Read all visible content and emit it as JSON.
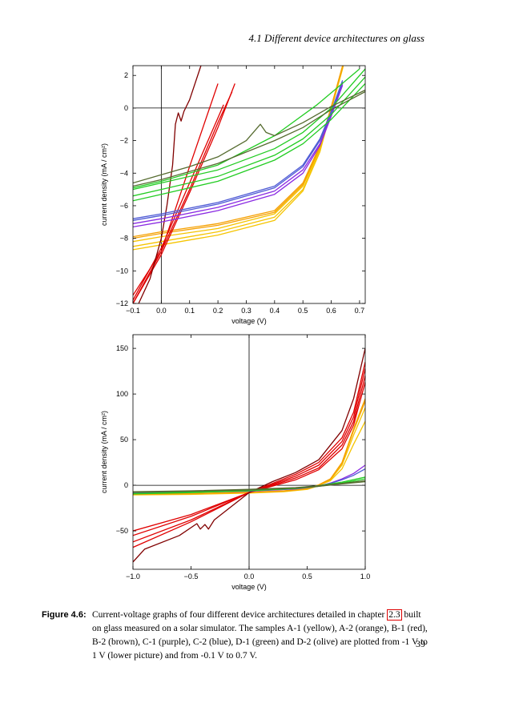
{
  "header": {
    "running_title": "4.1  Different device architectures on glass"
  },
  "page_number": "39",
  "caption": {
    "label": "Figure 4.6:",
    "text_before_ref": "Current-voltage graphs of four different device architectures detailed in chapter ",
    "ref": "2.3",
    "text_after_ref": " built on glass measured on a solar simulator. The samples A-1 (yellow), A-2 (orange), B-1 (red), B-2 (brown), C-1 (purple), C-2 (blue), D-1 (green) and D-2 (olive) are plotted from -1 V to 1 V (lower picture) and from -0.1 V to 0.7 V."
  },
  "colors": {
    "A-1": "#f5c400",
    "A-2": "#f5a000",
    "B-1": "#e00000",
    "B-2": "#800000",
    "C-1": "#8a2be2",
    "C-2": "#4f5bd5",
    "D-1": "#22cc22",
    "D-2": "#556b2f"
  },
  "chart_data": [
    {
      "type": "line",
      "title": "",
      "xlabel": "voltage (V)",
      "ylabel": "current density (mA / cm²)",
      "xlim": [
        -0.1,
        0.72
      ],
      "ylim": [
        -12,
        2.6
      ],
      "xticks": [
        -0.1,
        0.0,
        0.1,
        0.2,
        0.3,
        0.4,
        0.5,
        0.6,
        0.7
      ],
      "xtick_labels": [
        "−0.1",
        "0.0",
        "0.1",
        "0.2",
        "0.3",
        "0.4",
        "0.5",
        "0.6",
        "0.7"
      ],
      "yticks": [
        -12,
        -10,
        -8,
        -6,
        -4,
        -2,
        0,
        2
      ],
      "ytick_labels": [
        "−12",
        "−10",
        "−8",
        "−6",
        "−4",
        "−2",
        "0",
        "2"
      ],
      "series": [
        {
          "name": "A-1 #1",
          "sample": "A-1",
          "x": [
            -0.1,
            0.0,
            0.2,
            0.4,
            0.5,
            0.56,
            0.6,
            0.64,
            0.66
          ],
          "y": [
            -8.2,
            -7.9,
            -7.4,
            -6.5,
            -4.8,
            -2.5,
            0,
            2.5,
            4
          ]
        },
        {
          "name": "A-1 #2",
          "sample": "A-1",
          "x": [
            -0.1,
            0.0,
            0.2,
            0.4,
            0.5,
            0.56,
            0.6,
            0.64,
            0.66
          ],
          "y": [
            -8.5,
            -8.2,
            -7.6,
            -6.7,
            -5.0,
            -2.6,
            0,
            2.5,
            4
          ]
        },
        {
          "name": "A-1 #3",
          "sample": "A-1",
          "x": [
            -0.1,
            0.0,
            0.2,
            0.4,
            0.5,
            0.56,
            0.6,
            0.64,
            0.66
          ],
          "y": [
            -8.7,
            -8.4,
            -7.8,
            -6.9,
            -5.1,
            -2.7,
            -0.1,
            2.4,
            4
          ]
        },
        {
          "name": "A-2 #1",
          "sample": "A-2",
          "x": [
            -0.1,
            0.0,
            0.2,
            0.4,
            0.5,
            0.56,
            0.6,
            0.64,
            0.66
          ],
          "y": [
            -7.9,
            -7.6,
            -7.1,
            -6.3,
            -4.6,
            -2.3,
            0.1,
            2.6,
            4
          ]
        },
        {
          "name": "A-2 #2",
          "sample": "A-2",
          "x": [
            -0.1,
            0.0,
            0.2,
            0.4,
            0.5,
            0.56,
            0.6,
            0.64,
            0.66
          ],
          "y": [
            -8.0,
            -7.7,
            -7.2,
            -6.4,
            -4.7,
            -2.4,
            0,
            2.5,
            4
          ]
        },
        {
          "name": "B-1 #1",
          "sample": "B-1",
          "x": [
            -0.1,
            0.0,
            0.1,
            0.2
          ],
          "y": [
            -12,
            -8.8,
            -3.6,
            1.5
          ]
        },
        {
          "name": "B-1 #2",
          "sample": "B-1",
          "x": [
            -0.1,
            0.0,
            0.1,
            0.2,
            0.22
          ],
          "y": [
            -11.8,
            -8.6,
            -4.6,
            -0.6,
            0.2
          ]
        },
        {
          "name": "B-1 #3",
          "sample": "B-1",
          "x": [
            -0.1,
            0.0,
            0.1,
            0.2,
            0.25
          ],
          "y": [
            -11.5,
            -8.8,
            -5.0,
            -0.9,
            1.0
          ]
        },
        {
          "name": "B-1 #4",
          "sample": "B-1",
          "x": [
            -0.1,
            0.0,
            0.1,
            0.2,
            0.26
          ],
          "y": [
            -12,
            -9.0,
            -5.2,
            -1.2,
            1.5
          ]
        },
        {
          "name": "B-2 #1",
          "sample": "B-2",
          "x": [
            -0.08,
            -0.04,
            0.0,
            0.02,
            0.04,
            0.05,
            0.06,
            0.07,
            0.08,
            0.1,
            0.14
          ],
          "y": [
            -12,
            -10.5,
            -8.0,
            -6.0,
            -3.5,
            -1.0,
            -0.3,
            -0.8,
            -0.2,
            0.5,
            2.6
          ]
        },
        {
          "name": "C-1 #1",
          "sample": "C-1",
          "x": [
            -0.1,
            0.0,
            0.2,
            0.4,
            0.5,
            0.56,
            0.6,
            0.64
          ],
          "y": [
            -7.1,
            -6.8,
            -6.1,
            -5.1,
            -3.8,
            -2.2,
            -0.4,
            1.5
          ]
        },
        {
          "name": "C-1 #2",
          "sample": "C-1",
          "x": [
            -0.1,
            0.0,
            0.2,
            0.4,
            0.5,
            0.56,
            0.6,
            0.64
          ],
          "y": [
            -7.3,
            -7.0,
            -6.3,
            -5.3,
            -4.0,
            -2.3,
            -0.5,
            1.4
          ]
        },
        {
          "name": "C-2 #1",
          "sample": "C-2",
          "x": [
            -0.1,
            0.0,
            0.2,
            0.4,
            0.5,
            0.56,
            0.6,
            0.64
          ],
          "y": [
            -6.8,
            -6.5,
            -5.8,
            -4.8,
            -3.5,
            -1.9,
            -0.2,
            1.7
          ]
        },
        {
          "name": "C-2 #2",
          "sample": "C-2",
          "x": [
            -0.1,
            0.0,
            0.2,
            0.4,
            0.5,
            0.56,
            0.6,
            0.64
          ],
          "y": [
            -6.9,
            -6.6,
            -5.9,
            -4.9,
            -3.6,
            -2.0,
            -0.3,
            1.6
          ]
        },
        {
          "name": "D-1 #1",
          "sample": "D-1",
          "x": [
            -0.1,
            0.0,
            0.2,
            0.4,
            0.5,
            0.6,
            0.72
          ],
          "y": [
            -5.0,
            -4.6,
            -3.8,
            -2.5,
            -1.5,
            0,
            2.4
          ]
        },
        {
          "name": "D-1 #2",
          "sample": "D-1",
          "x": [
            -0.1,
            0.0,
            0.2,
            0.4,
            0.5,
            0.6,
            0.72
          ],
          "y": [
            -5.4,
            -5.0,
            -4.2,
            -2.9,
            -1.9,
            -0.4,
            1.9
          ]
        },
        {
          "name": "D-1 #3",
          "sample": "D-1",
          "x": [
            -0.1,
            0.0,
            0.2,
            0.4,
            0.5,
            0.6,
            0.72
          ],
          "y": [
            -5.7,
            -5.3,
            -4.5,
            -3.2,
            -2.2,
            -0.7,
            1.5
          ]
        },
        {
          "name": "D-1 #4",
          "sample": "D-1",
          "x": [
            -0.1,
            0.0,
            0.2,
            0.4,
            0.55,
            0.7
          ],
          "y": [
            -4.9,
            -4.5,
            -3.5,
            -1.7,
            0.2,
            2.4
          ]
        },
        {
          "name": "D-2 #1",
          "sample": "D-2",
          "x": [
            -0.1,
            0.0,
            0.1,
            0.2,
            0.3,
            0.35,
            0.37,
            0.4,
            0.5,
            0.6,
            0.72
          ],
          "y": [
            -4.6,
            -4.1,
            -3.6,
            -3.0,
            -2.0,
            -1.0,
            -1.5,
            -1.7,
            -0.9,
            0.1,
            1.1
          ]
        },
        {
          "name": "D-2 #2",
          "sample": "D-2",
          "x": [
            -0.1,
            0.0,
            0.2,
            0.4,
            0.5,
            0.6,
            0.72
          ],
          "y": [
            -4.8,
            -4.4,
            -3.4,
            -2.0,
            -1.2,
            -0.1,
            1.0
          ]
        }
      ]
    },
    {
      "type": "line",
      "title": "",
      "xlabel": "voltage (V)",
      "ylabel": "current density (mA / cm²)",
      "xlim": [
        -1.0,
        1.0
      ],
      "ylim": [
        -92,
        165
      ],
      "xticks": [
        -1.0,
        -0.5,
        0.0,
        0.5,
        1.0
      ],
      "xtick_labels": [
        "−1.0",
        "−0.5",
        "0.0",
        "0.5",
        "1.0"
      ],
      "yticks": [
        -50,
        0,
        50,
        100,
        150
      ],
      "ytick_labels": [
        "−50",
        "0",
        "50",
        "100",
        "150"
      ],
      "series": [
        {
          "name": "A-1 #1",
          "sample": "A-1",
          "x": [
            -1.0,
            -0.5,
            0.0,
            0.3,
            0.5,
            0.6,
            0.7,
            0.8,
            0.9,
            1.0
          ],
          "y": [
            -10,
            -9.5,
            -8,
            -6.5,
            -4,
            0,
            5,
            18,
            45,
            70
          ]
        },
        {
          "name": "A-1 #2",
          "sample": "A-1",
          "x": [
            -1.0,
            -0.5,
            0.0,
            0.3,
            0.5,
            0.6,
            0.7,
            0.8,
            0.9,
            1.0
          ],
          "y": [
            -10.5,
            -10,
            -8.5,
            -7,
            -4.5,
            -0.5,
            6,
            22,
            55,
            85
          ]
        },
        {
          "name": "A-2 #1",
          "sample": "A-2",
          "x": [
            -1.0,
            -0.5,
            0.0,
            0.3,
            0.5,
            0.6,
            0.7,
            0.8,
            0.9,
            1.0
          ],
          "y": [
            -9.5,
            -9,
            -7.5,
            -6,
            -3.5,
            0.5,
            7,
            25,
            62,
            95
          ]
        },
        {
          "name": "A-2 #2",
          "sample": "A-2",
          "x": [
            -1.0,
            -0.5,
            0.0,
            0.3,
            0.5,
            0.6,
            0.7,
            0.8,
            0.9,
            1.0
          ],
          "y": [
            -9.8,
            -9.3,
            -7.8,
            -6.3,
            -3.8,
            0.2,
            6.5,
            24,
            60,
            92
          ]
        },
        {
          "name": "B-1 #1",
          "sample": "B-1",
          "x": [
            -1.0,
            -0.5,
            0.0,
            0.2,
            0.4,
            0.6,
            0.8,
            0.9,
            1.0
          ],
          "y": [
            -50,
            -32,
            -8,
            2,
            12,
            25,
            52,
            80,
            135
          ]
        },
        {
          "name": "B-1 #2",
          "sample": "B-1",
          "x": [
            -1.0,
            -0.5,
            0.0,
            0.2,
            0.4,
            0.6,
            0.8,
            0.9,
            1.0
          ],
          "y": [
            -55,
            -34,
            -8,
            1,
            10,
            22,
            48,
            75,
            128
          ]
        },
        {
          "name": "B-1 #3",
          "sample": "B-1",
          "x": [
            -1.0,
            -0.5,
            0.0,
            0.2,
            0.4,
            0.6,
            0.8,
            0.9,
            1.0
          ],
          "y": [
            -62,
            -38,
            -8,
            0,
            8,
            19,
            44,
            70,
            120
          ]
        },
        {
          "name": "B-1 #4",
          "sample": "B-1",
          "x": [
            -1.0,
            -0.5,
            0.0,
            0.2,
            0.4,
            0.6,
            0.8,
            0.9,
            1.0
          ],
          "y": [
            -68,
            -40,
            -8,
            -1,
            6,
            17,
            40,
            66,
            113
          ]
        },
        {
          "name": "B-2 #1",
          "sample": "B-2",
          "x": [
            -1.0,
            -0.9,
            -0.6,
            -0.45,
            -0.42,
            -0.38,
            -0.35,
            -0.3,
            -0.2,
            0.0,
            0.2,
            0.4,
            0.6,
            0.8,
            0.9,
            1.0
          ],
          "y": [
            -84,
            -70,
            -55,
            -42,
            -48,
            -43,
            -48,
            -38,
            -28,
            -8,
            4,
            14,
            28,
            60,
            95,
            150
          ]
        },
        {
          "name": "C-1 #1",
          "sample": "C-1",
          "x": [
            -1.0,
            -0.5,
            0.0,
            0.4,
            0.6,
            0.7,
            0.8,
            0.9,
            1.0
          ],
          "y": [
            -8,
            -7.5,
            -6.5,
            -4,
            -1,
            2.5,
            7,
            13,
            22
          ]
        },
        {
          "name": "C-2 #1",
          "sample": "C-2",
          "x": [
            -1.0,
            -0.5,
            0.0,
            0.4,
            0.6,
            0.7,
            0.8,
            0.9,
            1.0
          ],
          "y": [
            -7.5,
            -7,
            -6,
            -3.5,
            -0.5,
            2,
            6,
            11,
            18
          ]
        },
        {
          "name": "D-1 #1",
          "sample": "D-1",
          "x": [
            -1.0,
            -0.5,
            0.0,
            0.4,
            0.6,
            0.8,
            1.0
          ],
          "y": [
            -9,
            -7.5,
            -5.5,
            -3,
            -0.5,
            3.5,
            9
          ]
        },
        {
          "name": "D-1 #2",
          "sample": "D-1",
          "x": [
            -1.0,
            -0.5,
            0.0,
            0.4,
            0.6,
            0.8,
            1.0
          ],
          "y": [
            -9.5,
            -8,
            -6,
            -3.5,
            -1,
            2.5,
            7
          ]
        },
        {
          "name": "D-2 #1",
          "sample": "D-2",
          "x": [
            -1.0,
            -0.5,
            0.0,
            0.4,
            0.6,
            0.8,
            1.0
          ],
          "y": [
            -7,
            -6,
            -4.5,
            -2.5,
            -0.5,
            2,
            5
          ]
        },
        {
          "name": "D-2 #2",
          "sample": "D-2",
          "x": [
            -1.0,
            -0.5,
            0.0,
            0.4,
            0.6,
            0.8,
            1.0
          ],
          "y": [
            -7.5,
            -6.5,
            -5,
            -3,
            -1,
            1.5,
            4
          ]
        }
      ]
    }
  ]
}
